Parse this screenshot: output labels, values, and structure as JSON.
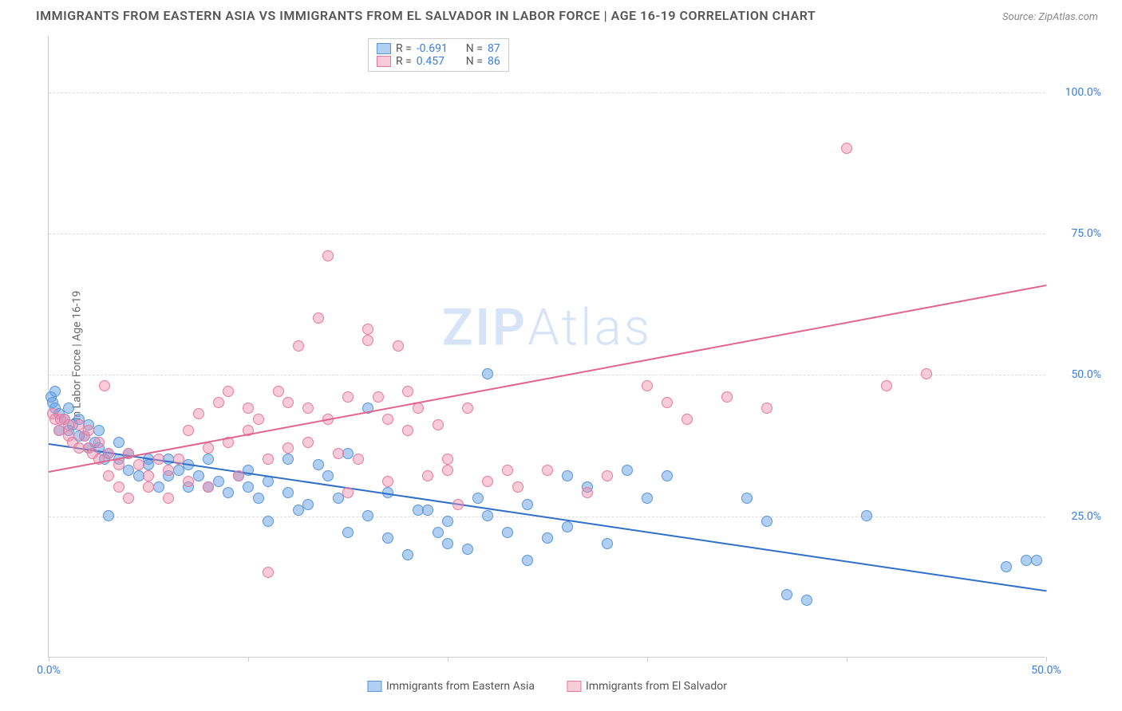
{
  "title": "IMMIGRANTS FROM EASTERN ASIA VS IMMIGRANTS FROM EL SALVADOR IN LABOR FORCE | AGE 16-19 CORRELATION CHART",
  "source": "Source: ZipAtlas.com",
  "ylabel": "In Labor Force | Age 16-19",
  "watermark_bold": "ZIP",
  "watermark_rest": "Atlas",
  "chart": {
    "type": "scatter",
    "xlim": [
      0,
      50
    ],
    "ylim": [
      0,
      110
    ],
    "xtick_positions": [
      0,
      10,
      20,
      30,
      40,
      50
    ],
    "xtick_labels": [
      "0.0%",
      "",
      "",
      "",
      "",
      "50.0%"
    ],
    "ytick_positions": [
      25,
      50,
      75,
      100
    ],
    "ytick_labels": [
      "25.0%",
      "50.0%",
      "75.0%",
      "100.0%"
    ],
    "background_color": "#ffffff",
    "grid_color": "#dddddd",
    "series": [
      {
        "name": "Immigrants from Eastern Asia",
        "color_fill": "rgba(100,160,230,0.5)",
        "color_stroke": "#5a96d6",
        "marker_radius": 7,
        "r_value": "-0.691",
        "n_value": "87",
        "trend": {
          "x1": 0,
          "y1": 38,
          "x2": 50,
          "y2": 12,
          "color": "#2f6fc9",
          "width": 2
        },
        "points": [
          [
            0.1,
            46
          ],
          [
            0.2,
            45
          ],
          [
            0.3,
            44
          ],
          [
            0.3,
            47
          ],
          [
            0.5,
            43
          ],
          [
            0.5,
            40
          ],
          [
            0.8,
            42
          ],
          [
            1,
            44
          ],
          [
            1,
            40
          ],
          [
            1.2,
            41
          ],
          [
            1.5,
            39
          ],
          [
            1.5,
            42
          ],
          [
            1.8,
            39
          ],
          [
            2,
            41
          ],
          [
            2,
            37
          ],
          [
            2.3,
            38
          ],
          [
            2.5,
            37
          ],
          [
            2.5,
            40
          ],
          [
            2.8,
            35
          ],
          [
            3,
            36
          ],
          [
            3,
            25
          ],
          [
            3.5,
            35
          ],
          [
            3.5,
            38
          ],
          [
            4,
            36
          ],
          [
            4,
            33
          ],
          [
            4.5,
            32
          ],
          [
            5,
            35
          ],
          [
            5,
            34
          ],
          [
            5.5,
            30
          ],
          [
            6,
            35
          ],
          [
            6,
            32
          ],
          [
            6.5,
            33
          ],
          [
            7,
            34
          ],
          [
            7,
            30
          ],
          [
            7.5,
            32
          ],
          [
            8,
            30
          ],
          [
            8,
            35
          ],
          [
            8.5,
            31
          ],
          [
            9,
            29
          ],
          [
            9.5,
            32
          ],
          [
            10,
            30
          ],
          [
            10,
            33
          ],
          [
            10.5,
            28
          ],
          [
            11,
            31
          ],
          [
            11,
            24
          ],
          [
            12,
            35
          ],
          [
            12,
            29
          ],
          [
            12.5,
            26
          ],
          [
            13,
            27
          ],
          [
            13.5,
            34
          ],
          [
            14,
            32
          ],
          [
            14.5,
            28
          ],
          [
            15,
            36
          ],
          [
            15,
            22
          ],
          [
            16,
            25
          ],
          [
            16,
            44
          ],
          [
            17,
            29
          ],
          [
            17,
            21
          ],
          [
            18,
            18
          ],
          [
            18.5,
            26
          ],
          [
            19,
            26
          ],
          [
            19.5,
            22
          ],
          [
            20,
            24
          ],
          [
            20,
            20
          ],
          [
            21,
            19
          ],
          [
            21.5,
            28
          ],
          [
            22,
            50
          ],
          [
            22,
            25
          ],
          [
            23,
            22
          ],
          [
            24,
            27
          ],
          [
            24,
            17
          ],
          [
            25,
            21
          ],
          [
            26,
            32
          ],
          [
            26,
            23
          ],
          [
            27,
            30
          ],
          [
            28,
            20
          ],
          [
            29,
            33
          ],
          [
            30,
            28
          ],
          [
            31,
            32
          ],
          [
            35,
            28
          ],
          [
            36,
            24
          ],
          [
            37,
            11
          ],
          [
            38,
            10
          ],
          [
            41,
            25
          ],
          [
            48,
            16
          ],
          [
            49,
            17
          ],
          [
            49.5,
            17
          ]
        ]
      },
      {
        "name": "Immigrants from El Salvador",
        "color_fill": "rgba(240,140,170,0.45)",
        "color_stroke": "#e57aa0",
        "marker_radius": 7,
        "r_value": "0.457",
        "n_value": "86",
        "trend": {
          "x1": 0,
          "y1": 33,
          "x2": 50,
          "y2": 66,
          "color": "#e0658e",
          "width": 2
        },
        "points": [
          [
            0.2,
            43
          ],
          [
            0.3,
            42
          ],
          [
            0.5,
            40
          ],
          [
            0.6,
            42
          ],
          [
            0.8,
            42
          ],
          [
            1,
            39
          ],
          [
            1,
            41
          ],
          [
            1.2,
            38
          ],
          [
            1.5,
            37
          ],
          [
            1.5,
            41
          ],
          [
            1.8,
            39
          ],
          [
            2,
            37
          ],
          [
            2,
            40
          ],
          [
            2.2,
            36
          ],
          [
            2.5,
            38
          ],
          [
            2.5,
            35
          ],
          [
            2.8,
            48
          ],
          [
            3,
            32
          ],
          [
            3,
            36
          ],
          [
            3.5,
            34
          ],
          [
            3.5,
            30
          ],
          [
            4,
            36
          ],
          [
            4,
            28
          ],
          [
            4.5,
            34
          ],
          [
            5,
            32
          ],
          [
            5,
            30
          ],
          [
            5.5,
            35
          ],
          [
            6,
            28
          ],
          [
            6,
            33
          ],
          [
            6.5,
            35
          ],
          [
            7,
            31
          ],
          [
            7,
            40
          ],
          [
            7.5,
            43
          ],
          [
            8,
            37
          ],
          [
            8,
            30
          ],
          [
            8.5,
            45
          ],
          [
            9,
            38
          ],
          [
            9,
            47
          ],
          [
            9.5,
            32
          ],
          [
            10,
            44
          ],
          [
            10,
            40
          ],
          [
            10.5,
            42
          ],
          [
            11,
            35
          ],
          [
            11,
            15
          ],
          [
            11.5,
            47
          ],
          [
            12,
            37
          ],
          [
            12,
            45
          ],
          [
            12.5,
            55
          ],
          [
            13,
            44
          ],
          [
            13,
            38
          ],
          [
            13.5,
            60
          ],
          [
            14,
            42
          ],
          [
            14,
            71
          ],
          [
            14.5,
            36
          ],
          [
            15,
            46
          ],
          [
            15,
            29
          ],
          [
            15.5,
            35
          ],
          [
            16,
            58
          ],
          [
            16,
            56
          ],
          [
            16.5,
            46
          ],
          [
            17,
            31
          ],
          [
            17,
            42
          ],
          [
            17.5,
            55
          ],
          [
            18,
            47
          ],
          [
            18,
            40
          ],
          [
            18.5,
            44
          ],
          [
            19,
            32
          ],
          [
            19.5,
            41
          ],
          [
            20,
            33
          ],
          [
            20,
            35
          ],
          [
            20.5,
            27
          ],
          [
            21,
            44
          ],
          [
            22,
            31
          ],
          [
            23,
            33
          ],
          [
            23.5,
            30
          ],
          [
            25,
            33
          ],
          [
            27,
            29
          ],
          [
            28,
            32
          ],
          [
            30,
            48
          ],
          [
            31,
            45
          ],
          [
            32,
            42
          ],
          [
            34,
            46
          ],
          [
            36,
            44
          ],
          [
            40,
            90
          ],
          [
            42,
            48
          ],
          [
            44,
            50
          ]
        ]
      }
    ],
    "legend_top": [
      {
        "color_fill": "rgba(100,160,230,0.5)",
        "color_stroke": "#5a96d6",
        "r_label": "R =",
        "r_value": "-0.691",
        "n_label": "N =",
        "n_value": "87"
      },
      {
        "color_fill": "rgba(240,140,170,0.45)",
        "color_stroke": "#e57aa0",
        "r_label": "R =",
        "r_value": "0.457",
        "n_label": "N =",
        "n_value": "86"
      }
    ],
    "legend_bottom": [
      {
        "color_fill": "rgba(100,160,230,0.5)",
        "color_stroke": "#5a96d6",
        "label": "Immigrants from Eastern Asia"
      },
      {
        "color_fill": "rgba(240,140,170,0.45)",
        "color_stroke": "#e57aa0",
        "label": "Immigrants from El Salvador"
      }
    ]
  }
}
